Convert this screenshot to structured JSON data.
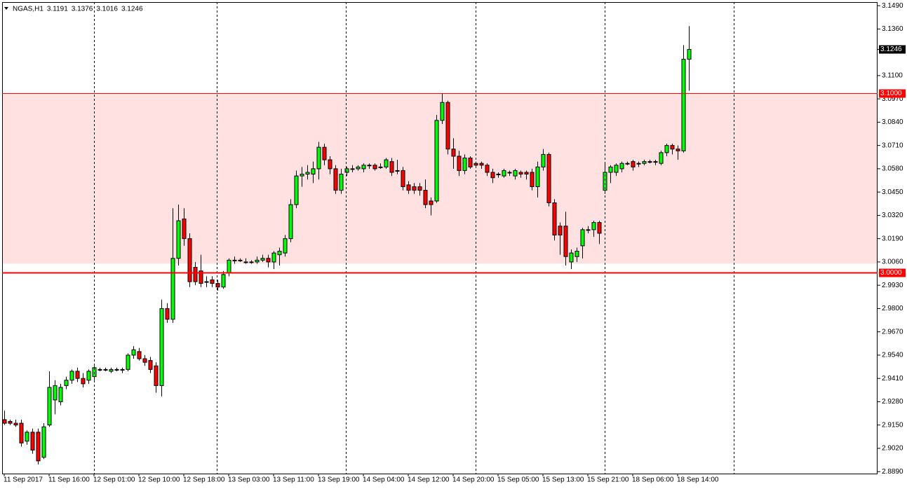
{
  "chart_data": {
    "type": "candlestick",
    "symbol": "NGAS,H1",
    "up_color": "#00ff00",
    "down_color": "#ff0000",
    "outline_color": "#000000",
    "categories": [
      "11 Sep 2017",
      null,
      null,
      null,
      null,
      null,
      null,
      null,
      "11 Sep 16:00",
      null,
      null,
      null,
      null,
      null,
      null,
      null,
      "12 Sep 01:00",
      null,
      null,
      null,
      null,
      null,
      null,
      null,
      "12 Sep 10:00",
      null,
      null,
      null,
      null,
      null,
      null,
      null,
      "12 Sep 18:00",
      null,
      null,
      null,
      null,
      null,
      null,
      null,
      "13 Sep 03:00",
      null,
      null,
      null,
      null,
      null,
      null,
      null,
      "13 Sep 11:00",
      null,
      null,
      null,
      null,
      null,
      null,
      null,
      "13 Sep 19:00",
      null,
      null,
      null,
      null,
      null,
      null,
      null,
      "14 Sep 04:00",
      null,
      null,
      null,
      null,
      null,
      null,
      null,
      "14 Sep 12:00",
      null,
      null,
      null,
      null,
      null,
      null,
      null,
      "14 Sep 20:00",
      null,
      null,
      null,
      null,
      null,
      null,
      null,
      "15 Sep 05:00",
      null,
      null,
      null,
      null,
      null,
      null,
      null,
      "15 Sep 13:00",
      null,
      null,
      null,
      null,
      null,
      null,
      null,
      "15 Sep 21:00",
      null,
      null,
      null,
      null,
      null,
      null,
      null,
      "18 Sep 06:00",
      null,
      null,
      null,
      null,
      null,
      null,
      null,
      "18 Sep 14:00",
      null,
      null
    ],
    "open": [
      2.918,
      2.917,
      2.916,
      2.916,
      2.906,
      2.911,
      2.911,
      2.897,
      2.915,
      2.929,
      2.928,
      2.937,
      2.94,
      2.945,
      2.941,
      2.94,
      2.942,
      2.946,
      2.946,
      2.945,
      2.946,
      2.946,
      2.946,
      2.954,
      2.956,
      2.952,
      2.951,
      2.948,
      2.937,
      2.98,
      2.974,
      3.008,
      3.03,
      3.019,
      3.003,
      3.001,
      2.995,
      2.996,
      2.994,
      2.992,
      3.0,
      3.007,
      3.007,
      3.006,
      3.006,
      3.006,
      3.007,
      3.008,
      3.006,
      3.01,
      3.011,
      3.019,
      3.038,
      3.054,
      3.055,
      3.055,
      3.058,
      3.07,
      3.063,
      3.058,
      3.046,
      3.056,
      3.058,
      3.058,
      3.058,
      3.06,
      3.06,
      3.059,
      3.059,
      3.062,
      3.057,
      3.057,
      3.049,
      3.048,
      3.048,
      3.046,
      3.04,
      3.04,
      3.085,
      3.095,
      3.069,
      3.065,
      3.057,
      3.064,
      3.061,
      3.061,
      3.06,
      3.056,
      3.055,
      3.054,
      3.056,
      3.054,
      3.056,
      3.056,
      3.056,
      3.048,
      3.059,
      3.066,
      3.039,
      3.026,
      3.026,
      3.006,
      3.009,
      3.015,
      3.024,
      3.024,
      3.028,
      3.046,
      3.056,
      3.056,
      3.058,
      3.061,
      3.062,
      3.061,
      3.061,
      3.062,
      3.062,
      3.061,
      3.067,
      3.071,
      3.069,
      3.068,
      3.1191
    ],
    "high": [
      2.923,
      2.918,
      2.918,
      2.918,
      2.912,
      2.913,
      2.913,
      2.916,
      2.945,
      2.94,
      2.938,
      2.942,
      2.946,
      2.947,
      2.944,
      2.946,
      2.948,
      2.947,
      2.947,
      2.947,
      2.947,
      2.947,
      2.955,
      2.959,
      2.958,
      2.954,
      2.953,
      2.95,
      2.985,
      2.983,
      3.036,
      3.038,
      3.036,
      3.022,
      3.006,
      3.01,
      2.998,
      2.998,
      2.996,
      3.001,
      3.008,
      3.009,
      3.008,
      3.008,
      3.007,
      3.009,
      3.01,
      3.01,
      3.012,
      3.014,
      3.021,
      3.041,
      3.057,
      3.059,
      3.06,
      3.062,
      3.073,
      3.072,
      3.065,
      3.06,
      3.058,
      3.059,
      3.06,
      3.06,
      3.061,
      3.061,
      3.061,
      3.061,
      3.064,
      3.064,
      3.063,
      3.059,
      3.051,
      3.05,
      3.05,
      3.052,
      3.042,
      3.088,
      3.1,
      3.096,
      3.075,
      3.068,
      3.066,
      3.065,
      3.062,
      3.062,
      3.061,
      3.058,
      3.056,
      3.058,
      3.057,
      3.058,
      3.057,
      3.057,
      3.058,
      3.062,
      3.069,
      3.067,
      3.041,
      3.028,
      3.034,
      3.013,
      3.014,
      3.025,
      3.026,
      3.029,
      3.029,
      3.061,
      3.06,
      3.061,
      3.062,
      3.062,
      3.063,
      3.062,
      3.063,
      3.063,
      3.063,
      3.068,
      3.072,
      3.072,
      3.071,
      3.127,
      3.1376
    ],
    "low": [
      2.915,
      2.915,
      2.914,
      2.903,
      2.904,
      2.899,
      2.893,
      2.896,
      2.914,
      2.921,
      2.926,
      2.935,
      2.938,
      2.939,
      2.936,
      2.938,
      2.94,
      2.945,
      2.945,
      2.944,
      2.945,
      2.944,
      2.945,
      2.952,
      2.951,
      2.948,
      2.944,
      2.933,
      2.931,
      2.972,
      2.972,
      3.004,
      3.015,
      2.992,
      2.993,
      2.992,
      2.992,
      2.992,
      2.99,
      2.991,
      2.998,
      3.005,
      3.006,
      3.005,
      3.005,
      3.005,
      3.006,
      3.003,
      3.002,
      3.004,
      3.009,
      3.017,
      3.036,
      3.048,
      3.052,
      3.05,
      3.052,
      3.06,
      3.055,
      3.044,
      3.044,
      3.054,
      3.056,
      3.057,
      3.056,
      3.058,
      3.057,
      3.058,
      3.058,
      3.054,
      3.055,
      3.046,
      3.044,
      3.044,
      3.043,
      3.036,
      3.032,
      3.039,
      3.083,
      3.066,
      3.058,
      3.054,
      3.055,
      3.058,
      3.059,
      3.058,
      3.054,
      3.05,
      3.053,
      3.053,
      3.054,
      3.052,
      3.053,
      3.052,
      3.046,
      3.042,
      3.057,
      3.037,
      3.018,
      3.01,
      3.004,
      3.002,
      3.006,
      3.008,
      3.022,
      3.02,
      3.016,
      3.044,
      3.05,
      3.054,
      3.056,
      3.06,
      3.057,
      3.059,
      3.06,
      3.061,
      3.06,
      3.06,
      3.065,
      3.066,
      3.063,
      3.067,
      3.1016
    ],
    "close": [
      2.916,
      2.916,
      2.915,
      2.905,
      2.911,
      2.901,
      2.895,
      2.914,
      2.936,
      2.937,
      2.936,
      2.94,
      2.945,
      2.941,
      2.938,
      2.945,
      2.947,
      2.946,
      2.946,
      2.946,
      2.946,
      2.946,
      2.954,
      2.957,
      2.952,
      2.95,
      2.946,
      2.937,
      2.98,
      2.974,
      3.008,
      3.029,
      3.019,
      2.995,
      2.995,
      2.994,
      2.995,
      2.994,
      2.992,
      2.999,
      3.007,
      3.007,
      3.007,
      3.006,
      3.006,
      3.007,
      3.008,
      3.006,
      3.011,
      3.012,
      3.019,
      3.038,
      3.054,
      3.055,
      3.056,
      3.058,
      3.07,
      3.063,
      3.058,
      3.046,
      3.055,
      3.058,
      3.058,
      3.059,
      3.06,
      3.06,
      3.058,
      3.059,
      3.063,
      3.056,
      3.057,
      3.048,
      3.046,
      3.046,
      3.046,
      3.038,
      3.038,
      3.085,
      3.095,
      3.069,
      3.065,
      3.057,
      3.064,
      3.059,
      3.06,
      3.06,
      3.056,
      3.053,
      3.055,
      3.057,
      3.056,
      3.057,
      3.055,
      3.055,
      3.048,
      3.059,
      3.066,
      3.039,
      3.021,
      3.021,
      3.009,
      3.011,
      3.012,
      3.024,
      3.024,
      3.028,
      3.022,
      3.056,
      3.059,
      3.06,
      3.061,
      3.061,
      3.059,
      3.061,
      3.062,
      3.062,
      3.062,
      3.067,
      3.071,
      3.069,
      3.068,
      3.1191,
      3.1246
    ],
    "ylim": [
      2.8879,
      3.151
    ],
    "yticks": [
      {
        "value": 3.149,
        "label": "3.1490"
      },
      {
        "value": 3.136,
        "label": "3.1360"
      },
      {
        "value": 3.11,
        "label": "3.1100"
      },
      {
        "value": 3.097,
        "label": "3.0970"
      },
      {
        "value": 3.084,
        "label": "3.0840"
      },
      {
        "value": 3.071,
        "label": "3.0710"
      },
      {
        "value": 3.058,
        "label": "3.0580"
      },
      {
        "value": 3.045,
        "label": "3.0450"
      },
      {
        "value": 3.032,
        "label": "3.0320"
      },
      {
        "value": 3.019,
        "label": "3.0190"
      },
      {
        "value": 3.006,
        "label": "3.0060"
      },
      {
        "value": 2.993,
        "label": "2.9930"
      },
      {
        "value": 2.98,
        "label": "2.9800"
      },
      {
        "value": 2.967,
        "label": "2.9670"
      },
      {
        "value": 2.954,
        "label": "2.9540"
      },
      {
        "value": 2.941,
        "label": "2.9410"
      },
      {
        "value": 2.928,
        "label": "2.9280"
      },
      {
        "value": 2.915,
        "label": "2.9150"
      },
      {
        "value": 2.902,
        "label": "2.9020"
      },
      {
        "value": 2.889,
        "label": "2.8890"
      }
    ],
    "levels": [
      {
        "value": 3.1,
        "label": "3.1000"
      },
      {
        "value": 3.0,
        "label": "3.0000"
      }
    ],
    "level_color": "#ff0000",
    "zone": [
      3.005,
      3.1
    ],
    "zone_color": "#ffe1e1",
    "grid": false
  }
}
